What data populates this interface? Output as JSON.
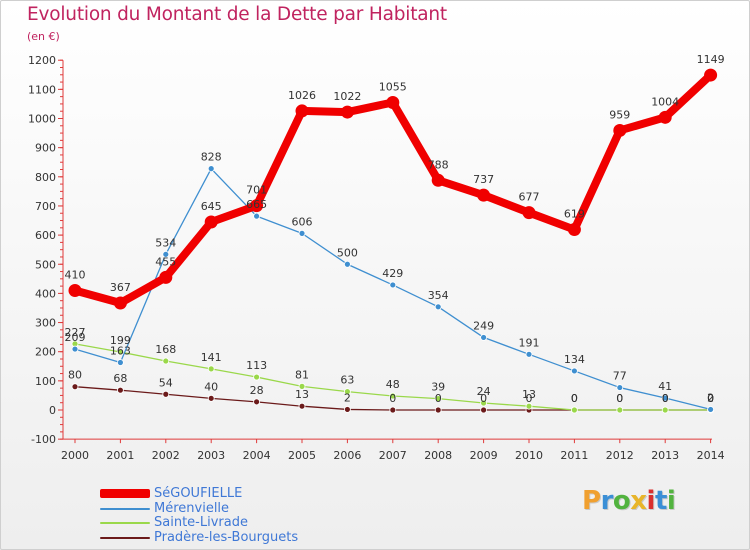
{
  "header": {
    "title": "Evolution du Montant de la Dette par Habitant",
    "unit": "(en €)"
  },
  "logo": {
    "text": "Proxiti",
    "colors": [
      "#f0a030",
      "#3b8fd6",
      "#52b33f",
      "#e8b52a",
      "#d9302e",
      "#3b8fd6",
      "#52b33f"
    ]
  },
  "chart_data": {
    "type": "line",
    "title": "Evolution du Montant de la Dette par Habitant",
    "ylabel": "(en €)",
    "x": [
      2000,
      2001,
      2002,
      2003,
      2004,
      2005,
      2006,
      2007,
      2008,
      2009,
      2010,
      2011,
      2012,
      2013,
      2014
    ],
    "ylim": [
      -100,
      1200
    ],
    "yticks": [
      -100,
      0,
      100,
      200,
      300,
      400,
      500,
      600,
      700,
      800,
      900,
      1000,
      1100,
      1200
    ],
    "grid": false,
    "legend_position": "bottom-left",
    "series": [
      {
        "name": "Pradère-les-Bourguets",
        "color": "#6b1a1a",
        "values": [
          80,
          68,
          54,
          40,
          28,
          13,
          2,
          0,
          0,
          0,
          0,
          0,
          0,
          0,
          0
        ],
        "labels": [
          "80",
          "68",
          "54",
          "40",
          "28",
          "13",
          "2",
          "0",
          "0",
          "0",
          "0",
          "0",
          "0",
          "0",
          "0"
        ]
      },
      {
        "name": "Sainte-Livrade",
        "color": "#9ad84a",
        "values": [
          227,
          199,
          168,
          141,
          113,
          81,
          63,
          48,
          39,
          24,
          13,
          0,
          0,
          0,
          0
        ],
        "labels": [
          "227",
          "199",
          "168",
          "141",
          "113",
          "81",
          "63",
          "48",
          "39",
          "24",
          "13",
          "0",
          "0",
          "0",
          "0"
        ]
      },
      {
        "name": "Mérenvielle",
        "color": "#3f8fd0",
        "values": [
          209,
          163,
          534,
          828,
          665,
          606,
          500,
          429,
          354,
          249,
          191,
          134,
          77,
          41,
          2
        ],
        "labels": [
          "209",
          "163",
          "534",
          "828",
          "665",
          "606",
          "500",
          "429",
          "354",
          "249",
          "191",
          "134",
          "77",
          "41",
          "2"
        ]
      },
      {
        "name": "SéGOUFIELLE",
        "color": "#f00000",
        "values": [
          410,
          367,
          455,
          645,
          701,
          1026,
          1022,
          1055,
          788,
          737,
          677,
          619,
          959,
          1004,
          1149
        ],
        "labels": [
          "410",
          "367",
          "455",
          "645",
          "701",
          "1026",
          "1022",
          "1055",
          "788",
          "737",
          "677",
          "619",
          "959",
          "1004",
          "1149"
        ]
      }
    ]
  },
  "legend": {
    "items": [
      {
        "label": "SéGOUFIELLE",
        "color": "#f00000"
      },
      {
        "label": "Mérenvielle",
        "color": "#3f8fd0"
      },
      {
        "label": "Sainte-Livrade",
        "color": "#9ad84a"
      },
      {
        "label": "Pradère-les-Bourguets",
        "color": "#6b1a1a"
      }
    ]
  }
}
